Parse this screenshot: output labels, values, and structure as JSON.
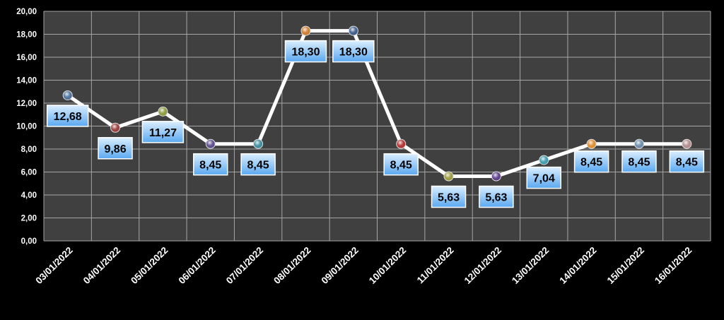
{
  "chart_data": {
    "type": "line",
    "title": "",
    "xlabel": "",
    "ylabel": "",
    "categories": [
      "03/01/2022",
      "04/01/2022",
      "05/01/2022",
      "06/01/2022",
      "07/01/2022",
      "08/01/2022",
      "09/01/2022",
      "10/01/2022",
      "11/01/2022",
      "12/01/2022",
      "13/01/2022",
      "14/01/2022",
      "15/01/2022",
      "16/01/2022"
    ],
    "values": [
      12.68,
      9.86,
      11.27,
      8.45,
      8.45,
      18.3,
      18.3,
      8.45,
      5.63,
      5.63,
      7.04,
      8.45,
      8.45,
      8.45
    ],
    "value_labels": [
      "12,68",
      "9,86",
      "11,27",
      "8,45",
      "8,45",
      "18,30",
      "18,30",
      "8,45",
      "5,63",
      "5,63",
      "7,04",
      "8,45",
      "8,45",
      "8,45"
    ],
    "label_position": [
      "below",
      "below",
      "below",
      "below",
      "below",
      "below",
      "below",
      "below",
      "below",
      "below",
      "above",
      "above",
      "above",
      "above"
    ],
    "ylim": [
      0,
      20
    ],
    "yticks": [
      "0,00",
      "2,00",
      "4,00",
      "6,00",
      "8,00",
      "10,00",
      "12,00",
      "14,00",
      "16,00",
      "18,00",
      "20,00"
    ],
    "grid": true,
    "legend": "none",
    "colors": {
      "background": "#000000",
      "plot_area": "#404040",
      "gridline": "#a6a6a6",
      "line": "#ffffff",
      "tick_text": "#ffffff",
      "label_box_top": "#dbeeff",
      "label_box_bottom": "#5aa8f0",
      "label_text": "#000000",
      "markers": [
        "#4a6f9a",
        "#9a3a3a",
        "#8a9a3a",
        "#5a4a8a",
        "#3a8a9a",
        "#d07a2a",
        "#3a5a8a",
        "#b03030",
        "#9a9a3a",
        "#5a3a8a",
        "#3a9aaa",
        "#e08a2a",
        "#6a8aaa",
        "#b08a8a"
      ]
    }
  }
}
